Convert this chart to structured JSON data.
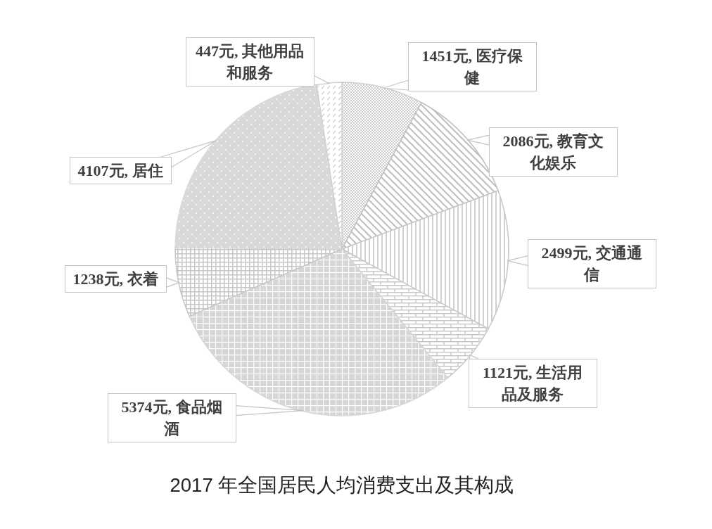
{
  "chart_data": {
    "type": "pie",
    "title": "2017 年全国居民人均消费支出及其构成",
    "categories": [
      "医疗保健",
      "教育文化娱乐",
      "交通通信",
      "生活用品及服务",
      "食品烟酒",
      "衣着",
      "居住",
      "其他用品和服务"
    ],
    "values": [
      1451,
      2086,
      2499,
      1121,
      5374,
      1238,
      4107,
      447
    ],
    "value_labels": [
      "1451元,",
      "2086元,",
      "2499元,",
      "1121元,",
      "5374元,",
      "1238元,",
      "4107元,",
      "447元,"
    ],
    "colors": [
      "#cdcdcd",
      "#bfbfbf",
      "#c6c6c6",
      "#c9c9c9",
      "#d6d6d6",
      "#c6c6c6",
      "#d9d9d9",
      "#cfcfcf"
    ]
  }
}
